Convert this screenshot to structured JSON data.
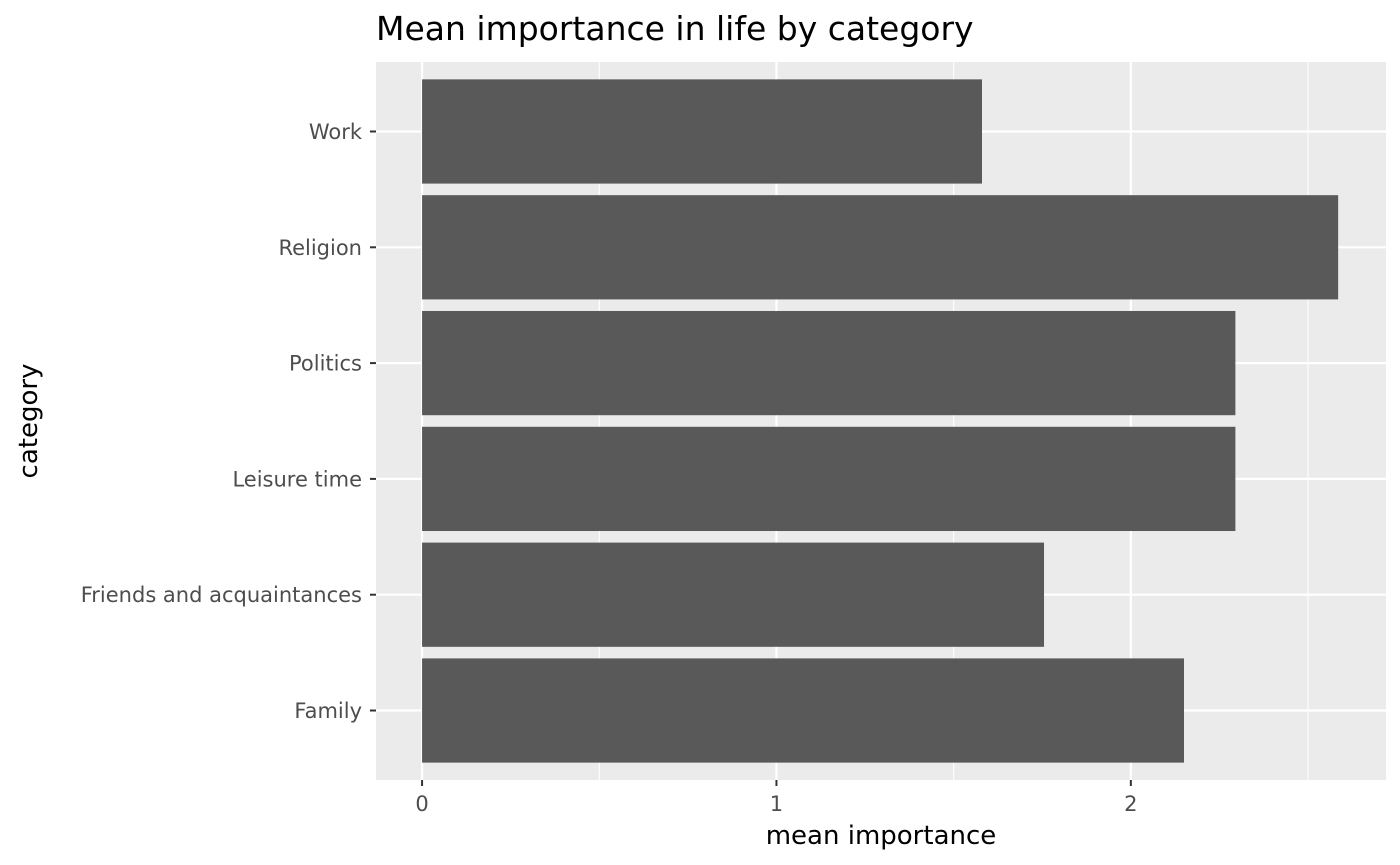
{
  "chart_data": {
    "type": "bar",
    "orientation": "horizontal",
    "title": "Mean importance in life by category",
    "xlabel": "mean importance",
    "ylabel": "category",
    "categories": [
      "Family",
      "Friends and acquaintances",
      "Leisure time",
      "Politics",
      "Religion",
      "Work"
    ],
    "values": [
      2.15,
      1.755,
      2.295,
      2.295,
      2.585,
      1.58
    ],
    "xlim": [
      -0.13,
      2.72
    ],
    "xticks": [
      0,
      1,
      2
    ],
    "xtick_labels": [
      "0",
      "1",
      "2"
    ],
    "grid": true,
    "legend": "none",
    "colors": {
      "panel": "#ebebeb",
      "grid": "#ffffff",
      "bar": "#595959",
      "tick_text": "#4d4d4d",
      "tick_mark": "#333333"
    }
  }
}
